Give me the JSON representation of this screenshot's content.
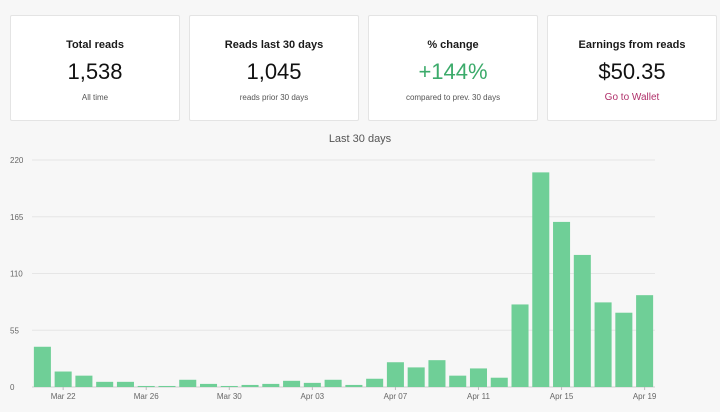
{
  "cards": [
    {
      "label": "Total reads",
      "value": "1,538",
      "sub": "All time"
    },
    {
      "label": "Reads last 30 days",
      "value": "1,045",
      "sub": "reads prior 30 days"
    },
    {
      "label": "% change",
      "value": "+144%",
      "sub": "compared to prev. 30 days"
    },
    {
      "label": "Earnings from reads",
      "value": "$50.35",
      "link": "Go to Wallet"
    }
  ],
  "colors": {
    "accent_green": "#3cab6b",
    "bar": "#6fcf97",
    "link": "#b0306a"
  },
  "chart_data": {
    "type": "bar",
    "title": "Last 30 days",
    "xlabel": "",
    "ylabel": "",
    "ylim": [
      0,
      220
    ],
    "yticks": [
      0,
      55,
      110,
      165,
      220
    ],
    "categories": [
      "Mar 21",
      "Mar 22",
      "Mar 23",
      "Mar 24",
      "Mar 25",
      "Mar 26",
      "Mar 27",
      "Mar 28",
      "Mar 29",
      "Mar 30",
      "Mar 31",
      "Apr 01",
      "Apr 02",
      "Apr 03",
      "Apr 04",
      "Apr 05",
      "Apr 06",
      "Apr 07",
      "Apr 08",
      "Apr 09",
      "Apr 10",
      "Apr 11",
      "Apr 12",
      "Apr 13",
      "Apr 14",
      "Apr 15",
      "Apr 16",
      "Apr 17",
      "Apr 18",
      "Apr 19"
    ],
    "tick_labels": [
      "Mar 22",
      "Mar 26",
      "Mar 30",
      "Apr 03",
      "Apr 07",
      "Apr 11",
      "Apr 15",
      "Apr 19"
    ],
    "values": [
      39,
      15,
      11,
      5,
      5,
      1,
      1,
      7,
      3,
      1,
      2,
      3,
      6,
      4,
      7,
      2,
      8,
      24,
      19,
      26,
      11,
      18,
      9,
      80,
      208,
      160,
      128,
      82,
      72,
      89
    ],
    "grid": true,
    "legend": "none"
  }
}
